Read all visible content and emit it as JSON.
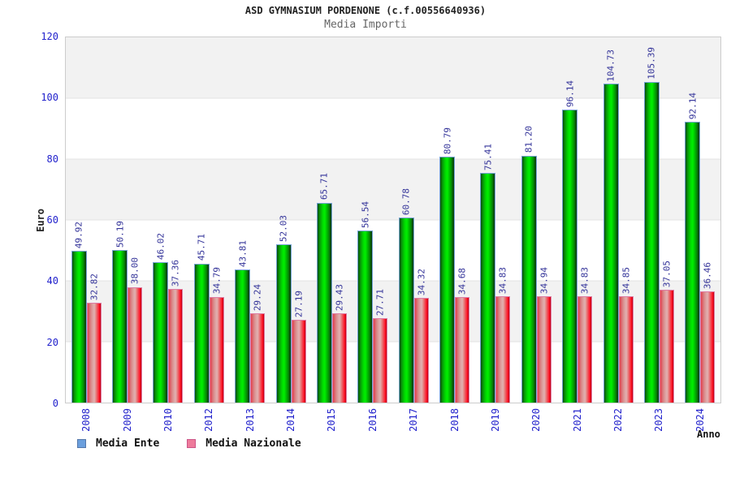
{
  "header": {
    "title": "ASD GYMNASIUM PORDENONE (c.f.00556640936)",
    "subtitle": "Media Importi"
  },
  "chart_data": {
    "type": "bar",
    "title": "ASD GYMNASIUM PORDENONE (c.f.00556640936)",
    "subtitle": "Media Importi",
    "xlabel": "Anno",
    "ylabel": "Euro",
    "ylim": [
      0,
      120
    ],
    "yticks": [
      0,
      20,
      40,
      60,
      80,
      100,
      120
    ],
    "grid": "alternating horizontal bands every 20 units",
    "legend_position": "bottom-left",
    "value_label_rotation": "vertical",
    "categories": [
      "2008",
      "2009",
      "2010",
      "2012",
      "2013",
      "2014",
      "2015",
      "2016",
      "2017",
      "2018",
      "2019",
      "2020",
      "2021",
      "2022",
      "2023",
      "2024"
    ],
    "series": [
      {
        "name": "Media Ente",
        "bar_color": "#00cc00",
        "bar_border_color": "#76a3d6",
        "legend_swatch_color": "#6b9fdd",
        "legend_swatch_border": "#5577aa",
        "values": [
          49.92,
          50.19,
          46.02,
          45.71,
          43.81,
          52.03,
          65.71,
          56.54,
          60.78,
          80.79,
          75.41,
          81.2,
          96.14,
          104.73,
          105.39,
          92.14
        ]
      },
      {
        "name": "Media Nazionale",
        "bar_color": "#ee3344",
        "bar_border_color": "#de7ba3",
        "legend_swatch_color": "#ee7b9b",
        "legend_swatch_border": "#cc5588",
        "values": [
          32.82,
          38.0,
          37.36,
          34.79,
          29.24,
          27.19,
          29.43,
          27.71,
          34.32,
          34.68,
          34.83,
          34.94,
          34.83,
          34.85,
          37.05,
          36.46
        ]
      }
    ],
    "colors": {
      "tick_label": "#2222cc",
      "value_label": "#333399",
      "band_gray": "#f2f2f2",
      "band_white": "#ffffff",
      "plot_border": "#cccccc",
      "title": "#222222",
      "subtitle": "#666666"
    }
  }
}
